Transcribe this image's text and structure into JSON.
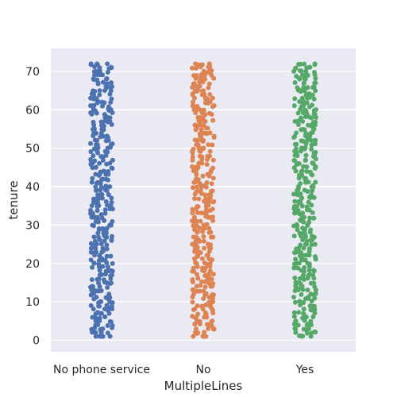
{
  "chart_data": {
    "type": "scatter",
    "subtype": "strip",
    "title": "",
    "xlabel": "MultipleLines",
    "ylabel": "tenure",
    "categories": [
      "No phone service",
      "No",
      "Yes"
    ],
    "colors": [
      "#4c72b0",
      "#dd8452",
      "#55a868"
    ],
    "ylim": [
      -3,
      76
    ],
    "yticks": [
      0,
      10,
      20,
      30,
      40,
      50,
      60,
      70
    ],
    "grid": true,
    "legend": "none",
    "series": [
      {
        "category": "No phone service",
        "values_min": 1,
        "values_max": 72
      },
      {
        "category": "No",
        "values_min": 1,
        "values_max": 72
      },
      {
        "category": "Yes",
        "values_min": 1,
        "values_max": 72
      }
    ]
  }
}
